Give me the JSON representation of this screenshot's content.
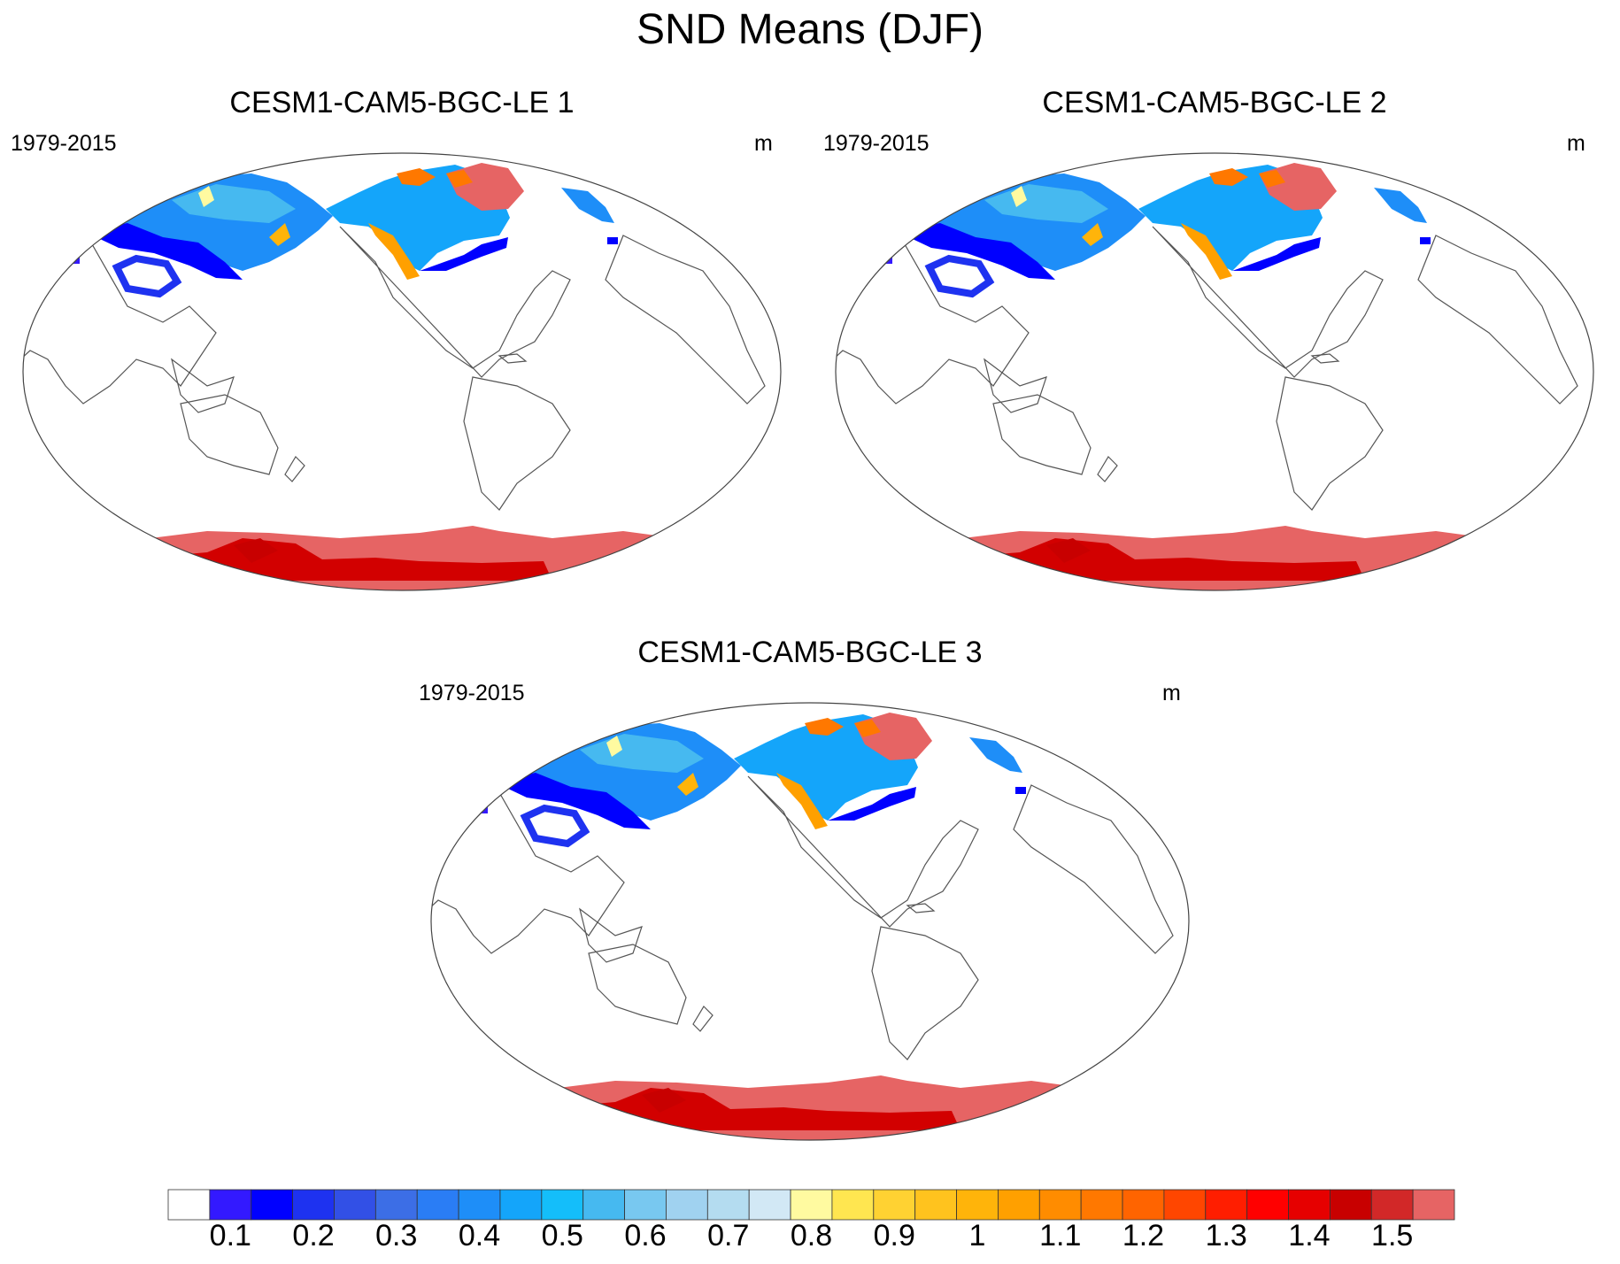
{
  "title": "SND Means (DJF)",
  "panels": [
    {
      "title": "CESM1-CAM5-BGC-LE 1",
      "period": "1979-2015",
      "unit": "m"
    },
    {
      "title": "CESM1-CAM5-BGC-LE 2",
      "period": "1979-2015",
      "unit": "m"
    },
    {
      "title": "CESM1-CAM5-BGC-LE 3",
      "period": "1979-2015",
      "unit": "m"
    }
  ],
  "colorbar": {
    "labels": [
      "0.1",
      "0.2",
      "0.3",
      "0.4",
      "0.5",
      "0.6",
      "0.7",
      "0.8",
      "0.9",
      "1",
      "1.1",
      "1.2",
      "1.3",
      "1.4",
      "1.5"
    ],
    "colors": [
      "#ffffff",
      "#3319ff",
      "#0000ff",
      "#1e32f0",
      "#3250e6",
      "#3c6ee6",
      "#2a7df5",
      "#1e8ef8",
      "#14a5fa",
      "#14befa",
      "#46b9f0",
      "#78c8f0",
      "#a0d2f0",
      "#b4dcf0",
      "#d2e8f5",
      "#fffaa0",
      "#ffe650",
      "#ffd232",
      "#ffc31e",
      "#ffb40a",
      "#ffa000",
      "#ff8c00",
      "#ff7800",
      "#ff6400",
      "#ff4600",
      "#ff1e00",
      "#ff0000",
      "#e60000",
      "#c80000",
      "#d22828",
      "#e66464"
    ]
  },
  "colors": {
    "coastline": "#555555",
    "outline": "#444444",
    "antarctica_edge": "#e66464",
    "antarctica_core": "#d20000",
    "greenland": "#e66464"
  }
}
